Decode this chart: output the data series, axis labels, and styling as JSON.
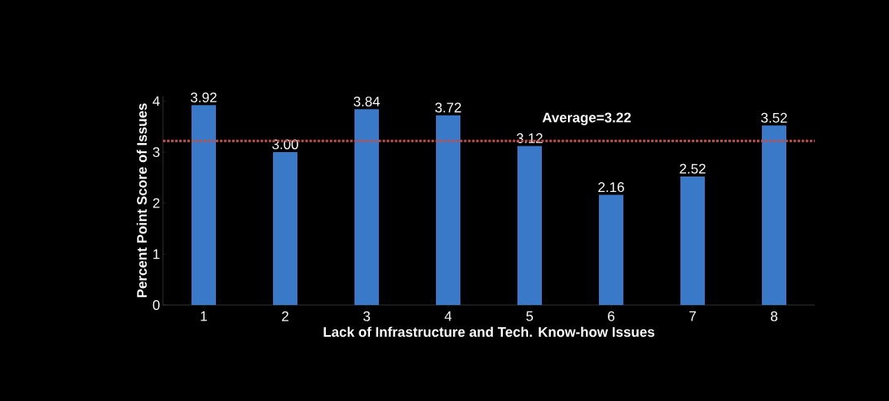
{
  "chart_data": {
    "type": "bar",
    "xlabel": "Lack of Infrastructure and Tech. Know-how Issues",
    "ylabel": "Percent Point Score of Issues",
    "categories": [
      "1",
      "2",
      "3",
      "4",
      "5",
      "6",
      "7",
      "8"
    ],
    "values": [
      3.92,
      3.0,
      3.84,
      3.72,
      3.12,
      2.16,
      2.52,
      3.52
    ],
    "value_labels": [
      "3.92",
      "3.00",
      "3.84",
      "3.72",
      "3.12",
      "2.16",
      "2.52",
      "3.52"
    ],
    "color": "#3a78c8",
    "ylim": [
      0,
      4.1
    ],
    "yticks": [
      0,
      1,
      2,
      3,
      4
    ],
    "ref_lines": [
      {
        "axis": "y",
        "value": 3.22,
        "label": "Average=3.22",
        "color": "#c0504d",
        "line_style": "dotted"
      }
    ]
  }
}
